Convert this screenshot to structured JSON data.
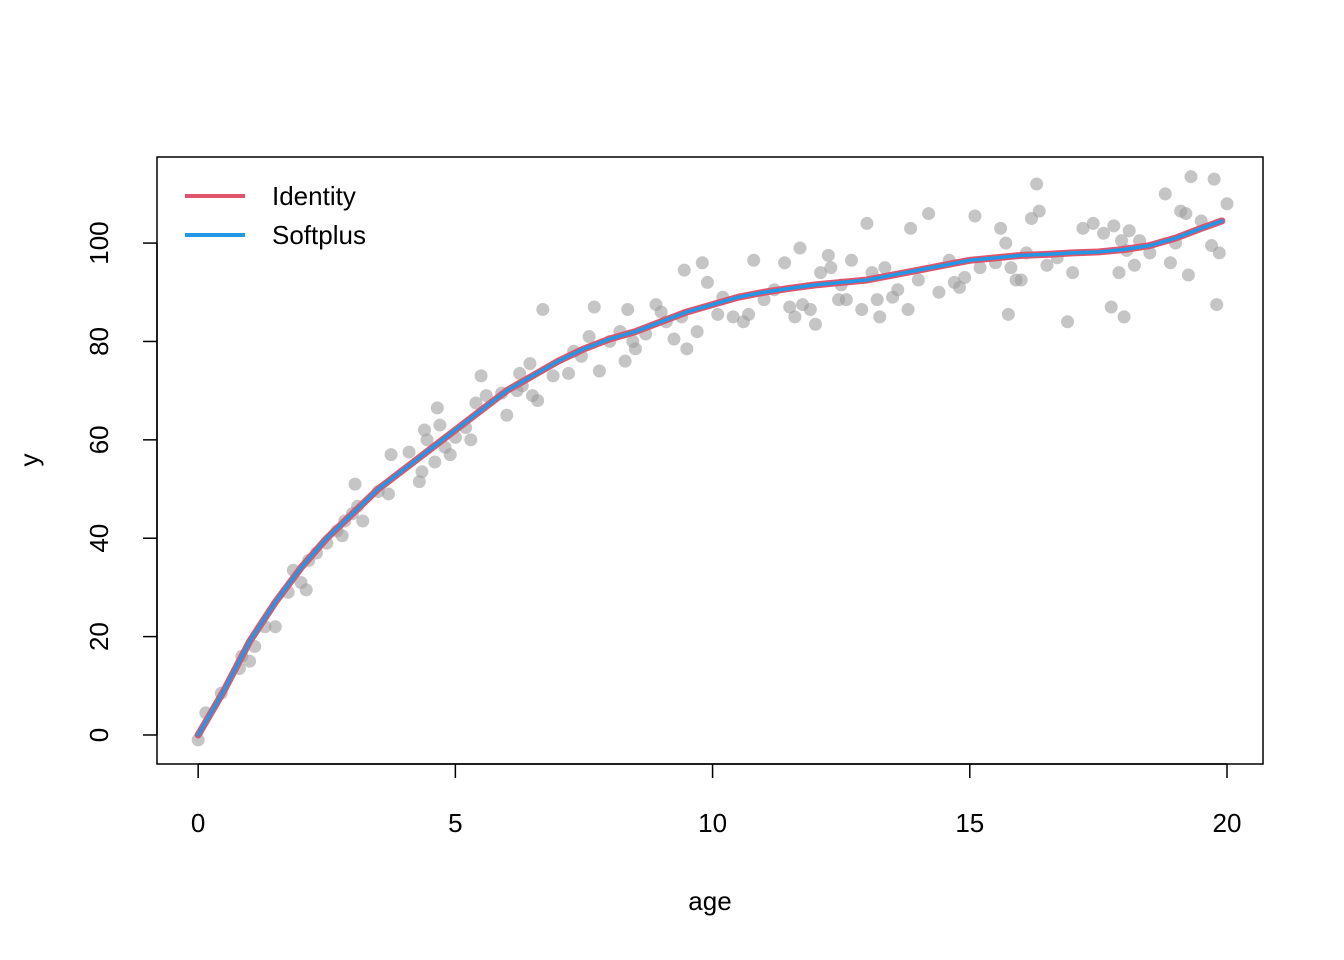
{
  "chart_data": {
    "type": "scatter",
    "xlabel": "age",
    "ylabel": "y",
    "xlim": [
      -0.8,
      20.7
    ],
    "ylim": [
      -5.9,
      117.5
    ],
    "xticks": [
      0,
      5,
      10,
      15,
      20
    ],
    "xtick_labels": [
      "0",
      "5",
      "10",
      "15",
      "20"
    ],
    "yticks": [
      0,
      20,
      40,
      60,
      80,
      100
    ],
    "ytick_labels": [
      "0",
      "20",
      "40",
      "60",
      "80",
      "100"
    ],
    "grid": false,
    "legend_position": "top-left",
    "point_color": "#9e9e9e",
    "points": [
      [
        0.0,
        -1.0
      ],
      [
        0.15,
        4.5
      ],
      [
        0.45,
        8.5
      ],
      [
        0.8,
        13.5
      ],
      [
        0.85,
        16.0
      ],
      [
        1.0,
        15.0
      ],
      [
        1.1,
        18.0
      ],
      [
        1.3,
        22.0
      ],
      [
        1.5,
        22.0
      ],
      [
        1.75,
        29.0
      ],
      [
        1.85,
        33.5
      ],
      [
        2.0,
        31.0
      ],
      [
        2.1,
        29.5
      ],
      [
        2.15,
        35.5
      ],
      [
        2.3,
        37.0
      ],
      [
        2.5,
        39.0
      ],
      [
        2.7,
        41.5
      ],
      [
        2.8,
        40.5
      ],
      [
        2.85,
        43.5
      ],
      [
        3.0,
        45.0
      ],
      [
        3.05,
        51.0
      ],
      [
        3.1,
        46.5
      ],
      [
        3.2,
        43.5
      ],
      [
        3.5,
        49.5
      ],
      [
        3.7,
        49.0
      ],
      [
        3.75,
        57.0
      ],
      [
        4.1,
        57.5
      ],
      [
        4.3,
        51.5
      ],
      [
        4.35,
        53.5
      ],
      [
        4.4,
        62.0
      ],
      [
        4.45,
        60.0
      ],
      [
        4.6,
        55.5
      ],
      [
        4.65,
        66.5
      ],
      [
        4.7,
        63.0
      ],
      [
        4.8,
        58.5
      ],
      [
        4.9,
        57.0
      ],
      [
        5.0,
        60.5
      ],
      [
        5.2,
        62.5
      ],
      [
        5.3,
        60.0
      ],
      [
        5.4,
        67.5
      ],
      [
        5.5,
        73.0
      ],
      [
        5.6,
        69.0
      ],
      [
        5.9,
        69.5
      ],
      [
        6.0,
        65.0
      ],
      [
        6.2,
        70.0
      ],
      [
        6.25,
        73.5
      ],
      [
        6.3,
        71.0
      ],
      [
        6.45,
        75.5
      ],
      [
        6.5,
        69.0
      ],
      [
        6.6,
        68.0
      ],
      [
        6.7,
        86.5
      ],
      [
        6.9,
        73.0
      ],
      [
        7.2,
        73.5
      ],
      [
        7.3,
        78.0
      ],
      [
        7.45,
        77.0
      ],
      [
        7.6,
        81.0
      ],
      [
        7.7,
        87.0
      ],
      [
        7.8,
        74.0
      ],
      [
        8.0,
        80.0
      ],
      [
        8.2,
        82.0
      ],
      [
        8.3,
        76.0
      ],
      [
        8.35,
        86.5
      ],
      [
        8.45,
        80.0
      ],
      [
        8.5,
        78.5
      ],
      [
        8.7,
        81.5
      ],
      [
        8.9,
        87.5
      ],
      [
        9.0,
        86.0
      ],
      [
        9.1,
        84.0
      ],
      [
        9.25,
        80.5
      ],
      [
        9.4,
        85.0
      ],
      [
        9.45,
        94.5
      ],
      [
        9.5,
        78.5
      ],
      [
        9.7,
        82.0
      ],
      [
        9.8,
        96.0
      ],
      [
        9.9,
        92.0
      ],
      [
        10.1,
        85.5
      ],
      [
        10.2,
        89.0
      ],
      [
        10.4,
        85.0
      ],
      [
        10.6,
        84.0
      ],
      [
        10.7,
        85.5
      ],
      [
        10.8,
        96.5
      ],
      [
        11.0,
        88.5
      ],
      [
        11.2,
        90.5
      ],
      [
        11.4,
        96.0
      ],
      [
        11.5,
        87.0
      ],
      [
        11.6,
        85.0
      ],
      [
        11.7,
        99.0
      ],
      [
        11.75,
        87.5
      ],
      [
        11.9,
        86.5
      ],
      [
        12.0,
        83.5
      ],
      [
        12.1,
        94.0
      ],
      [
        12.25,
        97.5
      ],
      [
        12.3,
        95.0
      ],
      [
        12.45,
        88.5
      ],
      [
        12.5,
        91.5
      ],
      [
        12.6,
        88.5
      ],
      [
        12.7,
        96.5
      ],
      [
        12.9,
        86.5
      ],
      [
        13.0,
        104.0
      ],
      [
        13.1,
        94.0
      ],
      [
        13.2,
        88.5
      ],
      [
        13.25,
        85.0
      ],
      [
        13.35,
        95.0
      ],
      [
        13.5,
        89.0
      ],
      [
        13.6,
        90.5
      ],
      [
        13.8,
        86.5
      ],
      [
        13.85,
        103.0
      ],
      [
        14.0,
        92.5
      ],
      [
        14.2,
        106.0
      ],
      [
        14.4,
        90.0
      ],
      [
        14.6,
        96.5
      ],
      [
        14.7,
        92.0
      ],
      [
        14.8,
        91.0
      ],
      [
        14.9,
        93.0
      ],
      [
        15.1,
        105.5
      ],
      [
        15.2,
        95.0
      ],
      [
        15.5,
        96.0
      ],
      [
        15.6,
        103.0
      ],
      [
        15.7,
        100.0
      ],
      [
        15.75,
        85.5
      ],
      [
        15.8,
        95.0
      ],
      [
        15.9,
        92.5
      ],
      [
        16.0,
        92.5
      ],
      [
        16.1,
        98.0
      ],
      [
        16.2,
        105.0
      ],
      [
        16.3,
        112.0
      ],
      [
        16.35,
        106.5
      ],
      [
        16.5,
        95.5
      ],
      [
        16.7,
        97.0
      ],
      [
        16.9,
        84.0
      ],
      [
        17.0,
        94.0
      ],
      [
        17.2,
        103.0
      ],
      [
        17.4,
        104.0
      ],
      [
        17.6,
        102.0
      ],
      [
        17.75,
        87.0
      ],
      [
        17.8,
        103.5
      ],
      [
        17.9,
        94.0
      ],
      [
        17.95,
        100.5
      ],
      [
        18.0,
        85.0
      ],
      [
        18.05,
        98.5
      ],
      [
        18.1,
        102.5
      ],
      [
        18.2,
        95.5
      ],
      [
        18.3,
        100.5
      ],
      [
        18.5,
        98.0
      ],
      [
        18.8,
        110.0
      ],
      [
        18.9,
        96.0
      ],
      [
        19.0,
        100.0
      ],
      [
        19.1,
        106.5
      ],
      [
        19.2,
        106.0
      ],
      [
        19.25,
        93.5
      ],
      [
        19.3,
        113.5
      ],
      [
        19.5,
        104.5
      ],
      [
        19.7,
        99.5
      ],
      [
        19.75,
        113.0
      ],
      [
        19.8,
        87.5
      ],
      [
        19.85,
        98.0
      ],
      [
        20.0,
        108.0
      ]
    ],
    "series": [
      {
        "name": "Identity",
        "color": "#df536b",
        "x": [
          0,
          0.5,
          1,
          1.5,
          2,
          2.5,
          3,
          3.5,
          4,
          4.5,
          5,
          5.5,
          6,
          6.5,
          7,
          7.5,
          8,
          8.5,
          9,
          9.5,
          10,
          10.5,
          11,
          11.5,
          12,
          12.5,
          13,
          13.5,
          14,
          14.5,
          15,
          15.5,
          16,
          16.5,
          17,
          17.5,
          18,
          18.5,
          19,
          19.5,
          19.9
        ],
        "y": [
          0,
          9,
          19,
          27,
          34,
          40,
          45,
          50,
          54,
          58,
          62,
          66,
          70,
          73,
          76,
          78.5,
          80.5,
          82,
          84,
          86,
          87.5,
          89,
          90,
          90.8,
          91.5,
          92,
          92.5,
          93.5,
          94.5,
          95.5,
          96.5,
          97,
          97.5,
          97.7,
          98,
          98.2,
          98.7,
          99.5,
          101,
          103,
          104.5
        ]
      },
      {
        "name": "Softplus",
        "color": "#2297e6",
        "x": [
          0,
          0.5,
          1,
          1.5,
          2,
          2.5,
          3,
          3.5,
          4,
          4.5,
          5,
          5.5,
          6,
          6.5,
          7,
          7.5,
          8,
          8.5,
          9,
          9.5,
          10,
          10.5,
          11,
          11.5,
          12,
          12.5,
          13,
          13.5,
          14,
          14.5,
          15,
          15.5,
          16,
          16.5,
          17,
          17.5,
          18,
          18.5,
          19,
          19.5,
          19.9
        ],
        "y": [
          0,
          9,
          19,
          27,
          34,
          40,
          45,
          50,
          54,
          58,
          62,
          66,
          70,
          73,
          76,
          78.5,
          80.5,
          82,
          84,
          86,
          87.5,
          89,
          90,
          90.8,
          91.5,
          92,
          92.5,
          93.5,
          94.5,
          95.5,
          96.5,
          97,
          97.5,
          97.7,
          98,
          98.2,
          98.7,
          99.5,
          101,
          103,
          104.5
        ]
      }
    ]
  }
}
